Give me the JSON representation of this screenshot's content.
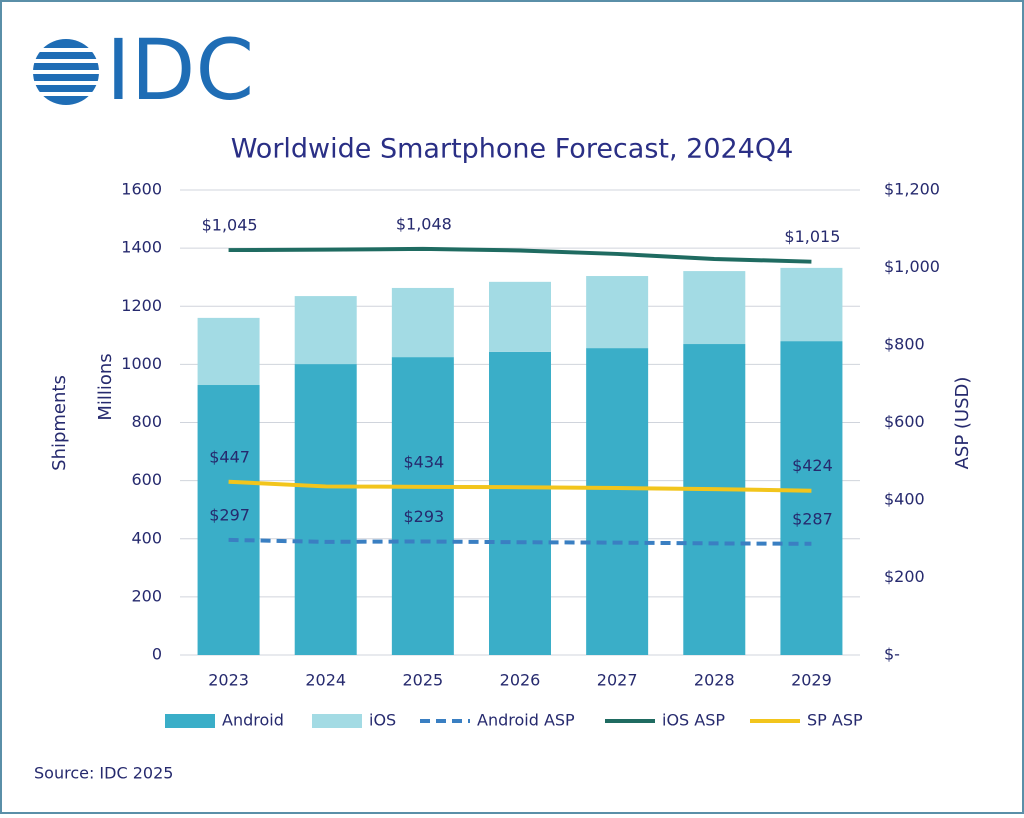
{
  "chart_data": {
    "type": "bar",
    "logo": "IDC",
    "title": "Worldwide Smartphone Forecast, 2024Q4",
    "ylabel": "Shipments",
    "yunit": "Millions",
    "y2label": "ASP (USD)",
    "source": "Source: IDC 2025",
    "categories": [
      "2023",
      "2024",
      "2025",
      "2026",
      "2027",
      "2028",
      "2029"
    ],
    "ylim": [
      0,
      1600
    ],
    "yticks": [
      0,
      200,
      400,
      600,
      800,
      1000,
      1200,
      1400,
      1600
    ],
    "y2lim": [
      0,
      1200
    ],
    "y2ticks": [
      {
        "value": 0,
        "label": "$-"
      },
      {
        "value": 200,
        "label": "$200"
      },
      {
        "value": 400,
        "label": "$400"
      },
      {
        "value": 600,
        "label": "$600"
      },
      {
        "value": 800,
        "label": "$800"
      },
      {
        "value": 1000,
        "label": "$1,000"
      },
      {
        "value": 1200,
        "label": "$1,200"
      }
    ],
    "grid": true,
    "stacked": true,
    "series": [
      {
        "name": "Android",
        "type": "bar",
        "color": "#3aaec8",
        "values": [
          929,
          1001,
          1025,
          1043,
          1056,
          1070,
          1080
        ]
      },
      {
        "name": "iOS",
        "type": "bar",
        "color": "#a3dbe4",
        "values": [
          231,
          234,
          238,
          241,
          248,
          251,
          252
        ]
      },
      {
        "name": "Android ASP",
        "type": "line",
        "axis": "y2",
        "dashed": true,
        "color": "#3a7fc2",
        "values": [
          297,
          292,
          293,
          291,
          290,
          288,
          287
        ],
        "value_labels": [
          "$297",
          null,
          "$293",
          null,
          null,
          null,
          "$287"
        ]
      },
      {
        "name": "iOS ASP",
        "type": "line",
        "axis": "y2",
        "dashed": false,
        "color": "#1f6b61",
        "values": [
          1045,
          1046,
          1048,
          1044,
          1035,
          1022,
          1015
        ],
        "value_labels": [
          "$1,045",
          null,
          "$1,048",
          null,
          null,
          null,
          "$1,015"
        ]
      },
      {
        "name": "SP ASP",
        "type": "line",
        "axis": "y2",
        "dashed": false,
        "color": "#f2c51c",
        "values": [
          447,
          435,
          434,
          433,
          431,
          428,
          424
        ],
        "value_labels": [
          "$447",
          null,
          "$434",
          null,
          null,
          null,
          "$424"
        ]
      }
    ]
  }
}
